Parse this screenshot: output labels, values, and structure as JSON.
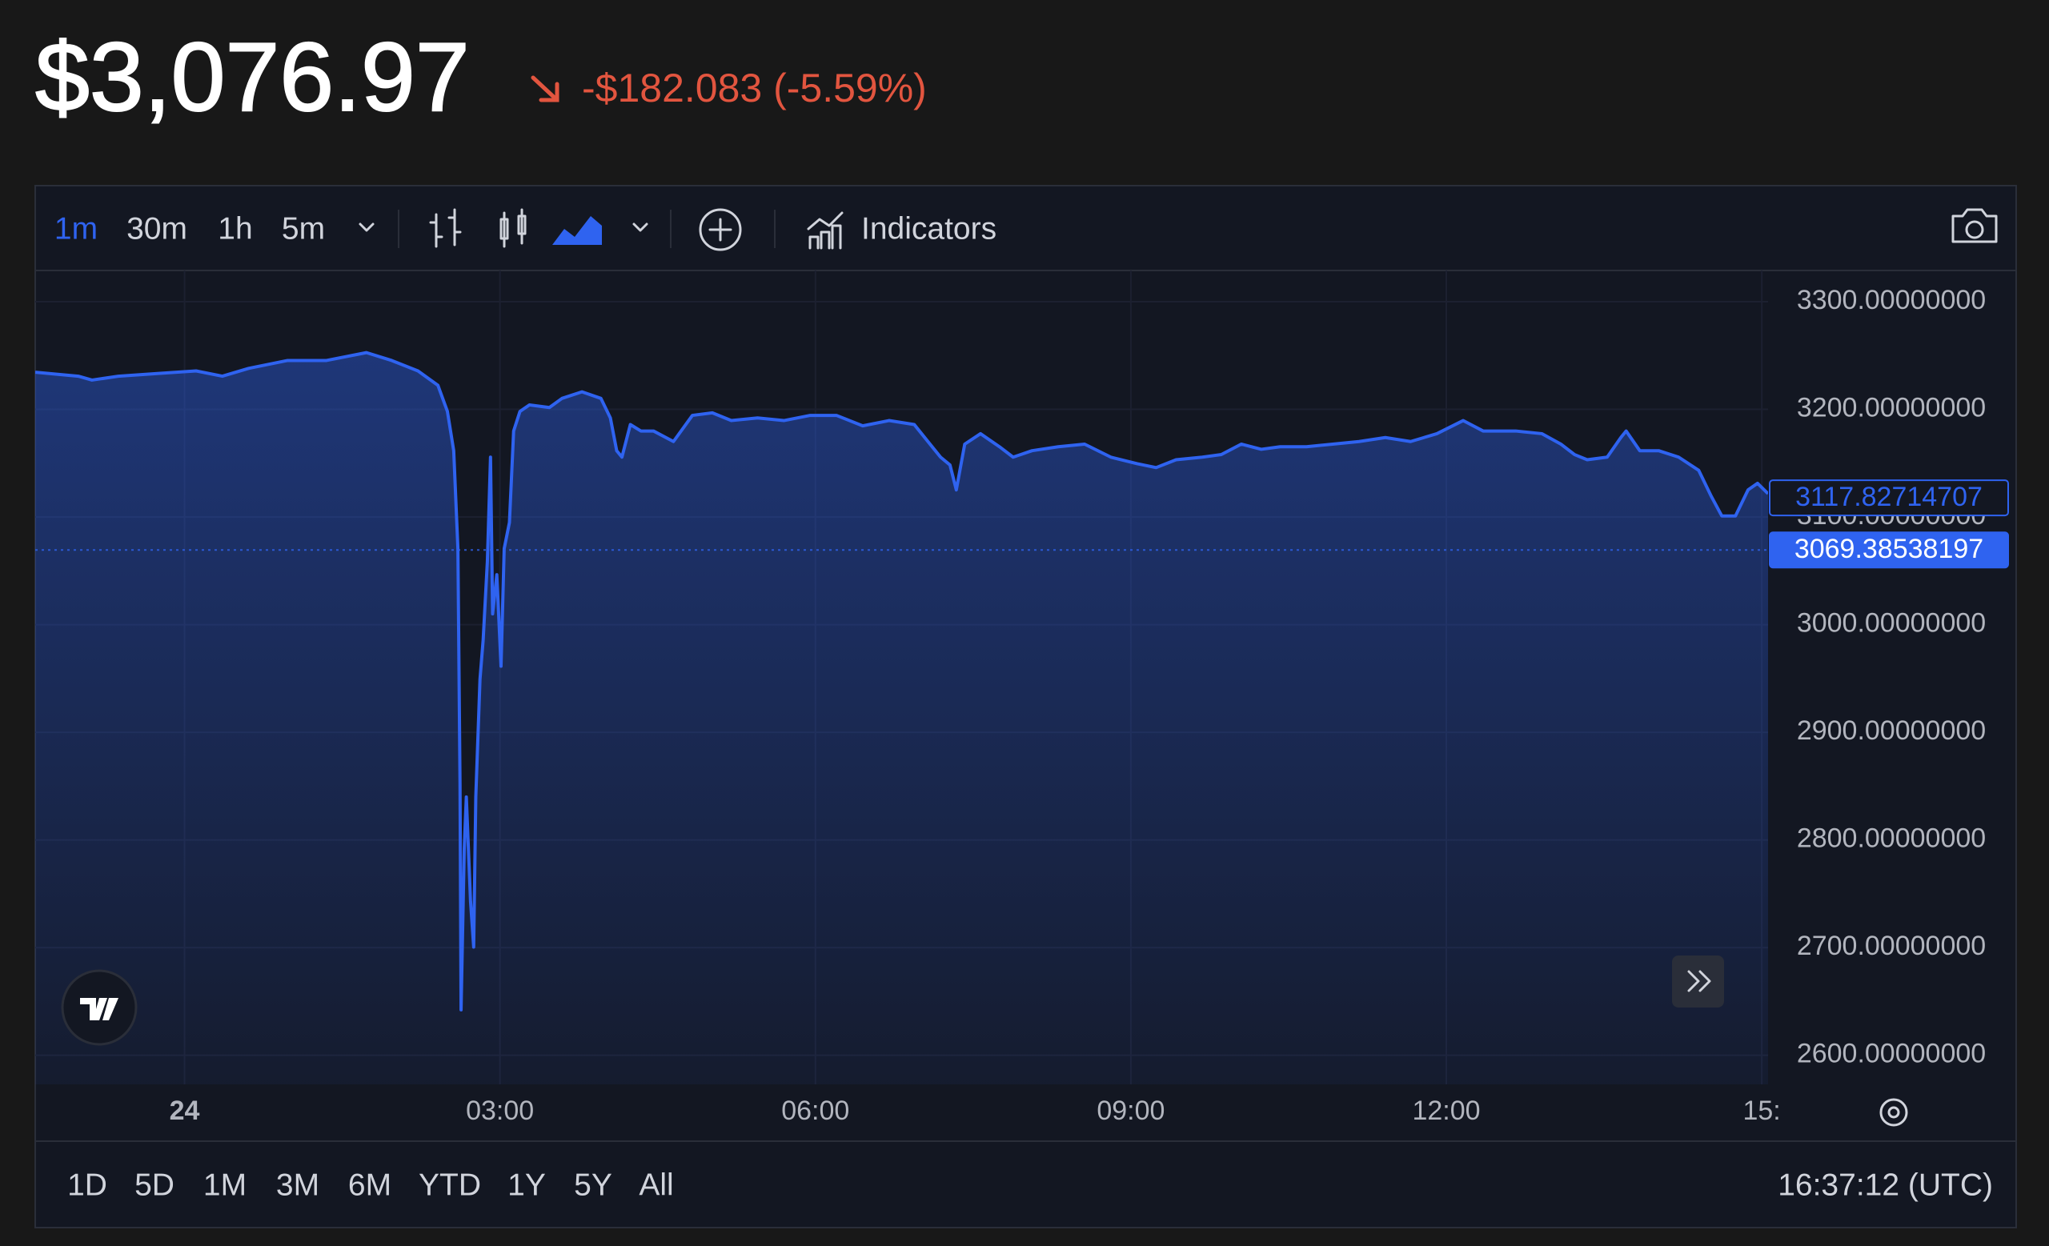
{
  "header": {
    "price": "$3,076.97",
    "change": "-$182.083 (-5.59%)"
  },
  "toolbar": {
    "intervals": [
      "1m",
      "30m",
      "1h",
      "5m"
    ],
    "indicators": "Indicators"
  },
  "footer": {
    "ranges": [
      "1D",
      "5D",
      "1M",
      "3M",
      "6M",
      "YTD",
      "1Y",
      "5Y",
      "All"
    ],
    "time": "16:37:12 (UTC)"
  },
  "chart_data": {
    "type": "area",
    "x": [
      -1.42,
      -1.01,
      -0.88,
      -0.63,
      -0.26,
      0.11,
      0.36,
      0.61,
      0.98,
      1.35,
      1.73,
      1.97,
      2.22,
      2.41,
      2.5,
      2.56,
      2.6,
      2.62,
      2.63,
      2.66,
      2.68,
      2.72,
      2.75,
      2.77,
      2.81,
      2.84,
      2.88,
      2.91,
      2.93,
      2.97,
      3.01,
      3.04,
      3.09,
      3.13,
      3.19,
      3.28,
      3.47,
      3.59,
      3.78,
      3.96,
      4.05,
      4.11,
      4.16,
      4.24,
      4.34,
      4.46,
      4.65,
      4.83,
      5.02,
      5.2,
      5.45,
      5.7,
      5.95,
      6.2,
      6.45,
      6.7,
      6.94,
      7.09,
      7.19,
      7.28,
      7.34,
      7.42,
      7.57,
      7.75,
      7.88,
      8.06,
      8.31,
      8.56,
      8.81,
      9.06,
      9.24,
      9.43,
      9.68,
      9.86,
      10.05,
      10.24,
      10.42,
      10.67,
      10.92,
      11.17,
      11.42,
      11.66,
      11.91,
      12.16,
      12.35,
      12.66,
      12.91,
      13.09,
      13.22,
      13.34,
      13.53,
      13.66,
      13.71,
      13.84,
      14.02,
      14.21,
      14.4,
      14.52,
      14.62,
      14.75,
      14.87,
      14.96,
      15.06
    ],
    "series": [
      {
        "color": "#2f63f0",
        "values": [
          3234.5,
          3230.8,
          3227.2,
          3230.8,
          3233.3,
          3235.7,
          3230.8,
          3238.1,
          3245.4,
          3245.4,
          3252.7,
          3245.4,
          3235.7,
          3222.3,
          3198.1,
          3161.6,
          3070.6,
          2852.2,
          2642.2,
          2791.5,
          2840,
          2743,
          2700.5,
          2840,
          2949.3,
          2985.7,
          3058.5,
          3155.6,
          3010,
          3046.4,
          2961.4,
          3070.6,
          3094.9,
          3179.9,
          3198.1,
          3204.1,
          3201.7,
          3210.2,
          3216.3,
          3210.2,
          3192,
          3161.6,
          3155.6,
          3185.9,
          3179.9,
          3179.9,
          3170.1,
          3194.4,
          3196.8,
          3189.6,
          3192,
          3189.6,
          3194.4,
          3194.4,
          3184.7,
          3189.6,
          3185.9,
          3167.7,
          3155.6,
          3148.3,
          3125.2,
          3167.7,
          3177.4,
          3165.3,
          3155.6,
          3161.6,
          3165.3,
          3167.7,
          3155.6,
          3149.5,
          3145.9,
          3153.2,
          3155.6,
          3158,
          3167.7,
          3162.9,
          3165.3,
          3165.3,
          3167.7,
          3170.1,
          3173.8,
          3170.1,
          3177.4,
          3189.6,
          3179.9,
          3179.9,
          3177.4,
          3167.7,
          3158,
          3153.2,
          3155.6,
          3173.8,
          3179.9,
          3161.6,
          3161.6,
          3155.6,
          3143.4,
          3119.2,
          3101,
          3101,
          3125.2,
          3131.3,
          3121.6
        ]
      }
    ],
    "xlim": [
      -1.42,
      15.06
    ],
    "ylim": [
      2573,
      3329
    ],
    "xticks": [
      {
        "value": 0,
        "label": "24"
      },
      {
        "value": 3,
        "label": "03:00"
      },
      {
        "value": 6,
        "label": "06:00"
      },
      {
        "value": 9,
        "label": "09:00"
      },
      {
        "value": 12,
        "label": "12:00"
      },
      {
        "value": 15,
        "label": "15:"
      }
    ],
    "yticks": [
      {
        "value": 2600,
        "label": "2600.00000000"
      },
      {
        "value": 2700,
        "label": "2700.00000000"
      },
      {
        "value": 2800,
        "label": "2800.00000000"
      },
      {
        "value": 2900,
        "label": "2900.00000000"
      },
      {
        "value": 3000,
        "label": "3000.00000000"
      },
      {
        "value": 3100,
        "label": "3100.00000000"
      },
      {
        "value": 3200,
        "label": "3200.00000000"
      },
      {
        "value": 3300,
        "label": "3300.00000000"
      }
    ],
    "grid": true,
    "price_lines": [
      {
        "value": 3117.82714707,
        "filled": false
      },
      {
        "value": 3069.38538197,
        "filled": true
      }
    ]
  }
}
